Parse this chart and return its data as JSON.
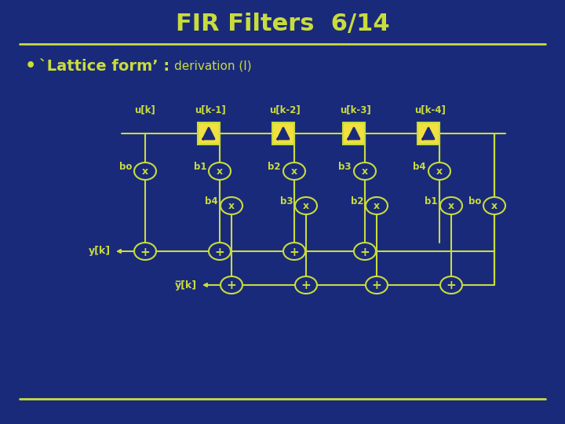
{
  "title": "FIR Filters  6/14",
  "bg_color": "#1a2a7a",
  "line_color": "#c8dc3c",
  "text_color": "#c8dc3c",
  "box_fill": "#f0e040",
  "circle_fill": "#1a2a7a",
  "title_fontsize": 22,
  "bullet_bold": "`Lattice form’ :",
  "bullet_light": "derivation (I)",
  "delay_labels": [
    "u[k]",
    "u[k-1]",
    "u[k-2]",
    "u[k-3]",
    "u[k-4]"
  ],
  "top_coeff": [
    "bo",
    "b1",
    "b2",
    "b3",
    "b4"
  ],
  "bot_coeff": [
    "b4",
    "b3",
    "b2",
    "b1",
    "bo"
  ],
  "y_label": "y[k]",
  "ybar_label": "y̅[k]"
}
